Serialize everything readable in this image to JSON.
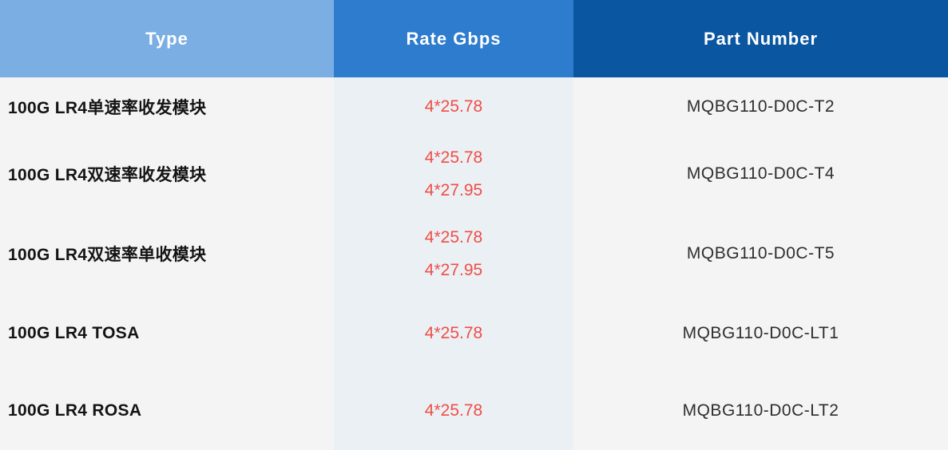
{
  "header": {
    "type_label": "Type",
    "rate_label": "Rate Gbps",
    "part_label": "Part Number"
  },
  "rows": [
    {
      "type": "100G LR4单速率收发模块",
      "rate1": "4*25.78",
      "part": "MQBG110-D0C-T2"
    },
    {
      "type": "100G LR4双速率收发模块",
      "rate1": "4*25.78",
      "rate2": "4*27.95",
      "part": "MQBG110-D0C-T4"
    },
    {
      "type": "100G LR4双速率单收模块",
      "rate1": "4*25.78",
      "rate2": "4*27.95",
      "part": "MQBG110-D0C-T5"
    },
    {
      "type": "100G LR4 TOSA",
      "rate1": "4*25.78",
      "part": "MQBG110-D0C-LT1"
    },
    {
      "type": "100G LR4 ROSA",
      "rate1": "4*25.78",
      "part": "MQBG110-D0C-LT2"
    }
  ],
  "colors": {
    "header_type_bg": "#7BAEE3",
    "header_rate_bg": "#2E7CCE",
    "header_part_bg": "#0B56A1",
    "body_column_bg": "#F4F4F4",
    "rate_column_bg": "#EBF0F5",
    "rate_text": "#F04D45",
    "header_text": "#FFFFFF",
    "type_text": "#141414",
    "part_text": "#2E2E2E"
  }
}
